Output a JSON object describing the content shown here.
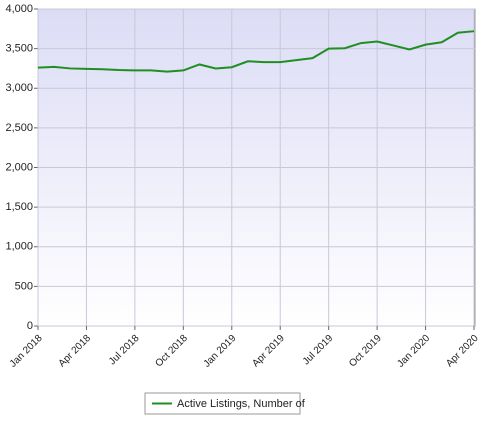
{
  "chart_data": {
    "type": "line",
    "categories": [
      "Jan 2018",
      null,
      null,
      "Apr 2018",
      null,
      null,
      "Jul 2018",
      null,
      null,
      "Oct 2018",
      null,
      null,
      "Jan 2019",
      null,
      null,
      "Apr 2019",
      null,
      null,
      "Jul 2019",
      null,
      null,
      "Oct 2019",
      null,
      null,
      "Jan 2020",
      null,
      null,
      "Apr 2020"
    ],
    "series": [
      {
        "name": "Active Listings, Number of",
        "color": "#1f8f1f",
        "values": [
          3260,
          3270,
          3250,
          3245,
          3240,
          3230,
          3225,
          3225,
          3210,
          3225,
          3300,
          3250,
          3265,
          3340,
          3330,
          3330,
          3355,
          3380,
          3500,
          3505,
          3570,
          3590,
          3540,
          3490,
          3550,
          3580,
          3700,
          3720
        ]
      }
    ],
    "ylim": [
      0,
      4000
    ],
    "yticks": [
      0,
      500,
      {
        "value": 1000,
        "label": "1,000"
      },
      {
        "value": 1500,
        "label": "1,500"
      },
      {
        "value": 2000,
        "label": "2,000"
      },
      {
        "value": 2500,
        "label": "2,500"
      },
      {
        "value": 3000,
        "label": "3,000"
      },
      {
        "value": 3500,
        "label": "3,500"
      },
      {
        "value": 4000,
        "label": "4,000"
      }
    ],
    "grid": true
  }
}
